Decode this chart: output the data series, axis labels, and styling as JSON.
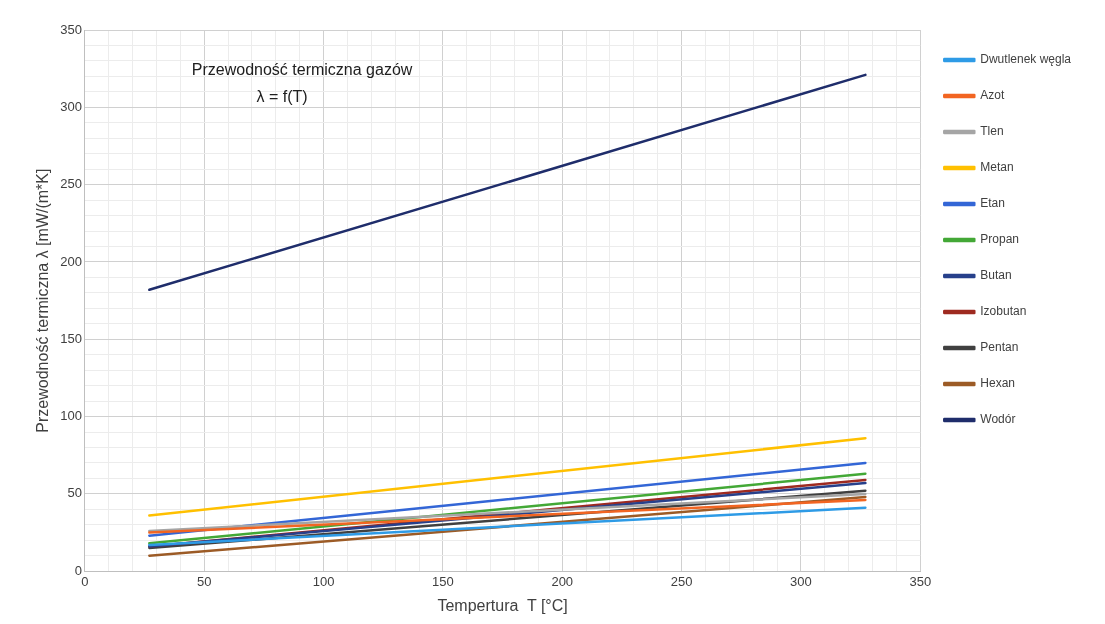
{
  "chart_data": {
    "type": "line",
    "title": "Przewodność termiczna gazów",
    "subtitle": "λ = f(T)",
    "xlabel": "Tempertura  T [°C]",
    "ylabel": "Przewodność termiczna λ [mW/(m*K]",
    "x": [
      27,
      327
    ],
    "series": [
      {
        "name": "Dwutlenek węgla",
        "color": "#2e9be6",
        "values": [
          17,
          41
        ]
      },
      {
        "name": "Azot",
        "color": "#f26522",
        "values": [
          25,
          46
        ]
      },
      {
        "name": "Tlen",
        "color": "#a5a5a5",
        "values": [
          26,
          50
        ]
      },
      {
        "name": "Metan",
        "color": "#ffc000",
        "values": [
          36,
          86
        ]
      },
      {
        "name": "Etan",
        "color": "#3366d6",
        "values": [
          23,
          70
        ]
      },
      {
        "name": "Propan",
        "color": "#43a836",
        "values": [
          18,
          63
        ]
      },
      {
        "name": "Butan",
        "color": "#27408b",
        "values": [
          16,
          57
        ]
      },
      {
        "name": "Izobutan",
        "color": "#9e2a20",
        "values": [
          16,
          59
        ]
      },
      {
        "name": "Pentan",
        "color": "#404040",
        "values": [
          15,
          52
        ]
      },
      {
        "name": "Hexan",
        "color": "#9c5b26",
        "values": [
          10,
          48
        ]
      },
      {
        "name": "Wodór",
        "color": "#1f2d6b",
        "values": [
          182,
          321
        ]
      }
    ],
    "xlim": [
      0,
      350
    ],
    "xticks": [
      0,
      {
        "value": 10,
        "label": null
      },
      {
        "value": 20,
        "label": null
      },
      {
        "value": 30,
        "label": null
      },
      {
        "value": 40,
        "label": null
      },
      50,
      {
        "value": 60,
        "label": null
      },
      {
        "value": 70,
        "label": null
      },
      {
        "value": 80,
        "label": null
      },
      {
        "value": 90,
        "label": null
      },
      100,
      {
        "value": 110,
        "label": null
      },
      {
        "value": 120,
        "label": null
      },
      {
        "value": 130,
        "label": null
      },
      {
        "value": 140,
        "label": null
      },
      150,
      {
        "value": 160,
        "label": null
      },
      {
        "value": 170,
        "label": null
      },
      {
        "value": 180,
        "label": null
      },
      {
        "value": 190,
        "label": null
      },
      200,
      {
        "value": 210,
        "label": null
      },
      {
        "value": 220,
        "label": null
      },
      {
        "value": 230,
        "label": null
      },
      {
        "value": 240,
        "label": null
      },
      250,
      {
        "value": 260,
        "label": null
      },
      {
        "value": 270,
        "label": null
      },
      {
        "value": 280,
        "label": null
      },
      {
        "value": 290,
        "label": null
      },
      300,
      {
        "value": 310,
        "label": null
      },
      {
        "value": 320,
        "label": null
      },
      {
        "value": 330,
        "label": null
      },
      {
        "value": 340,
        "label": null
      },
      350
    ],
    "ylim": [
      0,
      350
    ],
    "yticks": [
      0,
      {
        "value": 10,
        "label": null
      },
      {
        "value": 20,
        "label": null
      },
      {
        "value": 30,
        "label": null
      },
      {
        "value": 40,
        "label": null
      },
      50,
      {
        "value": 60,
        "label": null
      },
      {
        "value": 70,
        "label": null
      },
      {
        "value": 80,
        "label": null
      },
      {
        "value": 90,
        "label": null
      },
      100,
      {
        "value": 110,
        "label": null
      },
      {
        "value": 120,
        "label": null
      },
      {
        "value": 130,
        "label": null
      },
      {
        "value": 140,
        "label": null
      },
      150,
      {
        "value": 160,
        "label": null
      },
      {
        "value": 170,
        "label": null
      },
      {
        "value": 180,
        "label": null
      },
      {
        "value": 190,
        "label": null
      },
      200,
      {
        "value": 210,
        "label": null
      },
      {
        "value": 220,
        "label": null
      },
      {
        "value": 230,
        "label": null
      },
      {
        "value": 240,
        "label": null
      },
      250,
      {
        "value": 260,
        "label": null
      },
      {
        "value": 270,
        "label": null
      },
      {
        "value": 280,
        "label": null
      },
      {
        "value": 290,
        "label": null
      },
      300,
      {
        "value": 310,
        "label": null
      },
      {
        "value": 320,
        "label": null
      },
      {
        "value": 330,
        "label": null
      },
      {
        "value": 340,
        "label": null
      },
      350
    ],
    "grid": true,
    "legend": "right",
    "marker": "none",
    "line_style": "solid"
  }
}
